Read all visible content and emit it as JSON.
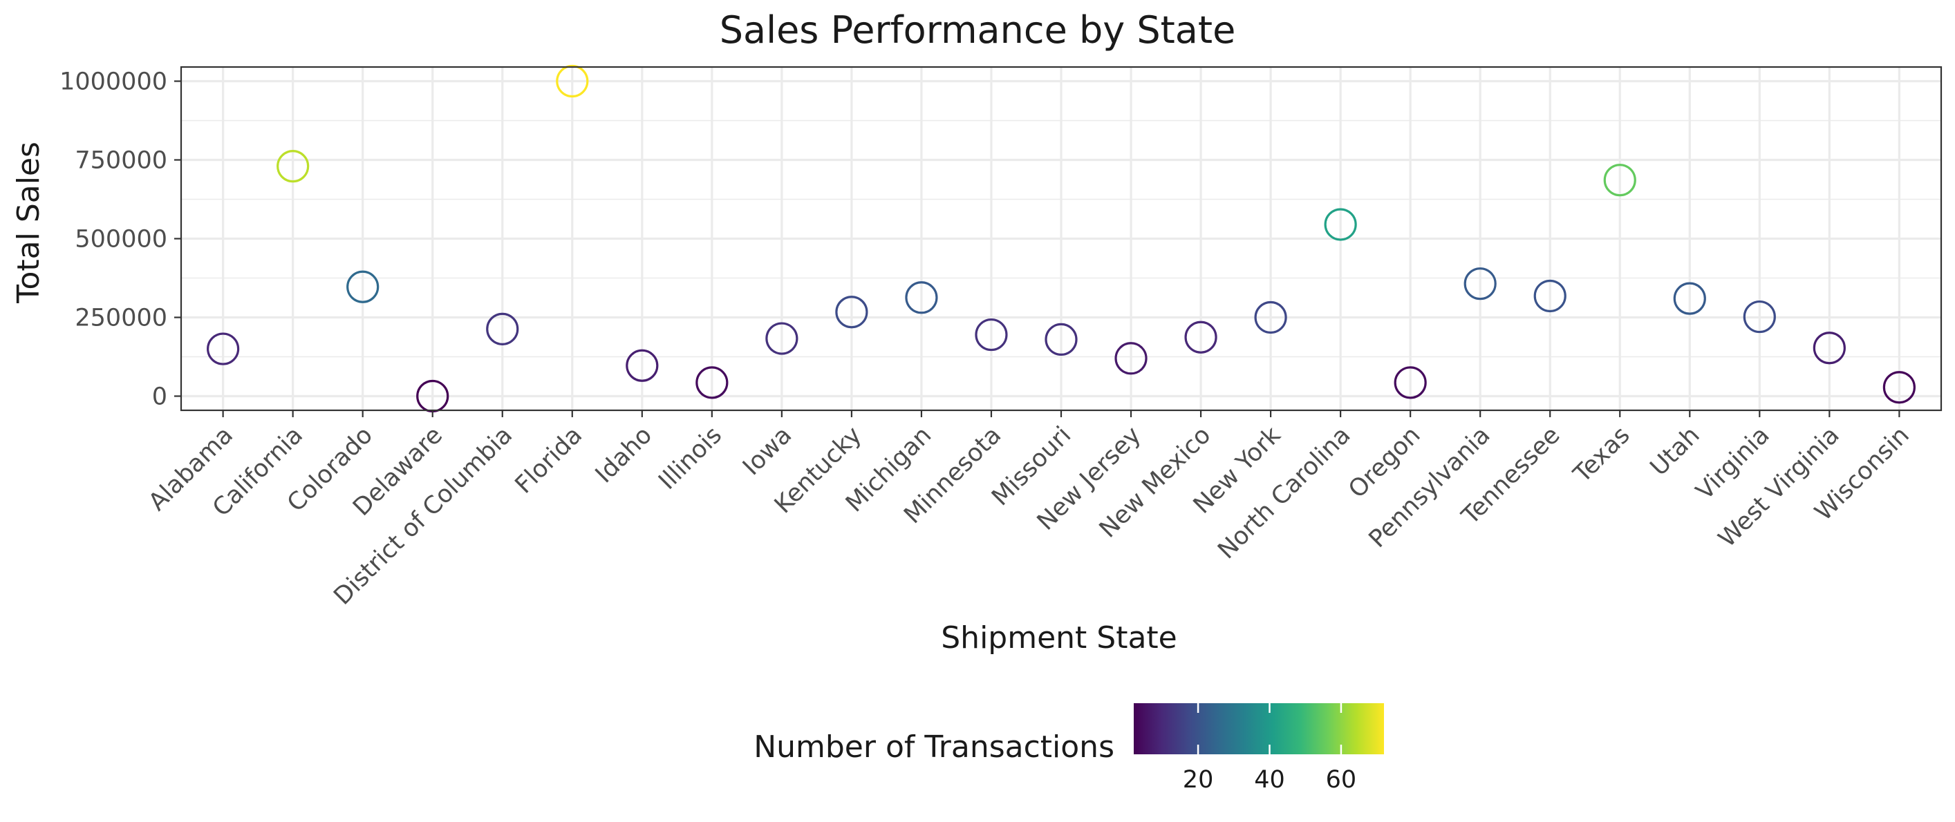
{
  "chart_data": {
    "type": "scatter",
    "title": "Sales Performance by State",
    "xlabel": "Shipment State",
    "ylabel": "Total Sales",
    "ylim": [
      -45000,
      1045000
    ],
    "yticks": [
      0,
      250000,
      500000,
      750000,
      1000000
    ],
    "ytick_labels": [
      "0",
      "250000",
      "500000",
      "750000",
      "1000000"
    ],
    "grid": true,
    "categories": [
      "Alabama",
      "California",
      "Colorado",
      "Delaware",
      "District of Columbia",
      "Florida",
      "Idaho",
      "Illinois",
      "Iowa",
      "Kentucky",
      "Michigan",
      "Minnesota",
      "Missouri",
      "New Jersey",
      "New Mexico",
      "New York",
      "North Carolina",
      "Oregon",
      "Pennsylvania",
      "Tennessee",
      "Texas",
      "Utah",
      "Virginia",
      "West Virginia",
      "Wisconsin"
    ],
    "values": [
      150000,
      730000,
      347000,
      0,
      213000,
      1000000,
      97000,
      43000,
      183000,
      267000,
      313000,
      195000,
      180000,
      120000,
      187000,
      250000,
      545000,
      43000,
      357000,
      318000,
      686000,
      310000,
      252000,
      153000,
      28000
    ],
    "color_values": [
      10,
      65,
      26,
      2,
      13,
      72,
      8,
      4,
      12,
      18,
      22,
      12,
      12,
      7,
      10,
      17,
      42,
      4,
      22,
      20,
      55,
      22,
      18,
      8,
      3
    ],
    "colorbar": {
      "title": "Number of Transactions",
      "range": [
        2,
        72
      ],
      "ticks": [
        20,
        40,
        60
      ],
      "tick_labels": [
        "20",
        "40",
        "60"
      ],
      "palette": [
        "#440154",
        "#482878",
        "#3e4a89",
        "#31688e",
        "#26828e",
        "#1f9e89",
        "#35b779",
        "#6ece58",
        "#b5de2b",
        "#fde725"
      ]
    },
    "legend_position": "bottom"
  }
}
